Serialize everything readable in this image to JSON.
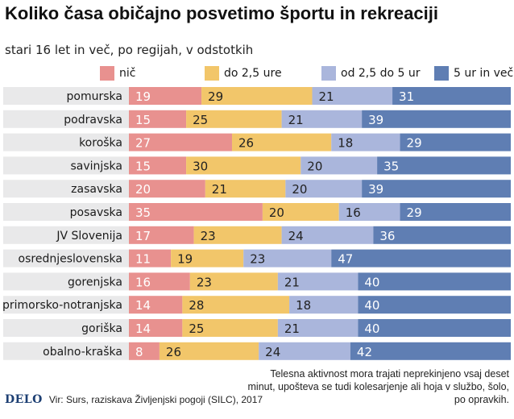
{
  "title": "Koliko časa običajno posvetimo športu in rekreaciji",
  "subtitle": "stari 16 let in več, po regijah, v odstotkih",
  "note": "Telesna aktivnost mora trajati neprekinjeno vsaj deset minut, upošteva se tudi kolesarjenje ali hoja v službo, šolo, po opravkih.",
  "footer": {
    "logo": "DELO",
    "source": "Vir: Surs, raziskava Življenjski pogoji (SILC), 2017"
  },
  "colors": {
    "nic": "#e8918f",
    "do25": "#f2c66a",
    "od25do5": "#aab6dc",
    "ur5": "#5f7eb3",
    "stripe": "#e9e9ea",
    "label_light": "#ffffff",
    "label_dark": "#222222"
  },
  "chart_data": {
    "type": "bar",
    "orientation": "horizontal",
    "stacked": true,
    "unit": "%",
    "categories": [
      "pomurska",
      "podravska",
      "koroška",
      "savinjska",
      "zasavska",
      "posavska",
      "JV Slovenija",
      "osrednjeslovenska",
      "gorenjska",
      "primorsko-notranjska",
      "goriška",
      "obalno-kraška"
    ],
    "series": [
      {
        "name": "nič",
        "color_key": "nic",
        "values": [
          19,
          15,
          27,
          15,
          20,
          35,
          17,
          11,
          16,
          14,
          14,
          8
        ]
      },
      {
        "name": "do 2,5 ure",
        "color_key": "do25",
        "values": [
          29,
          25,
          26,
          30,
          21,
          20,
          23,
          19,
          23,
          28,
          25,
          26
        ]
      },
      {
        "name": "od 2,5 do 5 ur",
        "color_key": "od25do5",
        "values": [
          21,
          21,
          18,
          20,
          20,
          16,
          24,
          23,
          21,
          18,
          21,
          24
        ]
      },
      {
        "name": "5 ur in več",
        "color_key": "ur5",
        "values": [
          31,
          39,
          29,
          35,
          39,
          29,
          36,
          47,
          40,
          40,
          40,
          42
        ]
      }
    ],
    "xlim": [
      0,
      100
    ],
    "legend_position": "top",
    "grid": false
  }
}
